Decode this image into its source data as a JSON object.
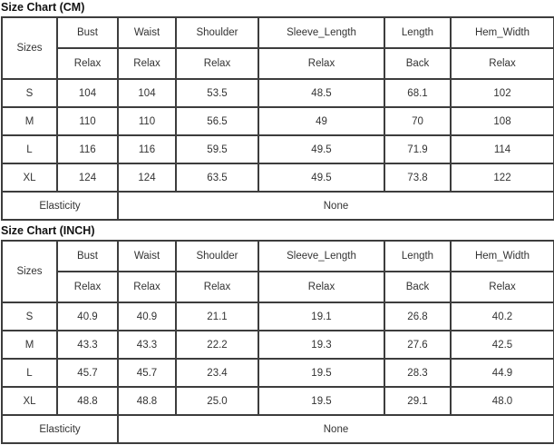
{
  "colors": {
    "border": "#3d3d3d",
    "text": "#333333",
    "title_text": "#111111",
    "background": "#ffffff"
  },
  "tables": [
    {
      "title": "Size Chart (CM)",
      "corner_label": "Sizes",
      "columns": [
        {
          "label": "Bust",
          "sub": "Relax"
        },
        {
          "label": "Waist",
          "sub": "Relax"
        },
        {
          "label": "Shoulder",
          "sub": "Relax"
        },
        {
          "label": "Sleeve_Length",
          "sub": "Relax"
        },
        {
          "label": "Length",
          "sub": "Back"
        },
        {
          "label": "Hem_Width",
          "sub": "Relax"
        }
      ],
      "rows": [
        {
          "size": "S",
          "values": [
            "104",
            "104",
            "53.5",
            "48.5",
            "68.1",
            "102"
          ]
        },
        {
          "size": "M",
          "values": [
            "110",
            "110",
            "56.5",
            "49",
            "70",
            "108"
          ]
        },
        {
          "size": "L",
          "values": [
            "116",
            "116",
            "59.5",
            "49.5",
            "71.9",
            "114"
          ]
        },
        {
          "size": "XL",
          "values": [
            "124",
            "124",
            "63.5",
            "49.5",
            "73.8",
            "122"
          ]
        }
      ],
      "footer": {
        "label": "Elasticity",
        "value": "None"
      }
    },
    {
      "title": "Size Chart (INCH)",
      "corner_label": "Sizes",
      "columns": [
        {
          "label": "Bust",
          "sub": "Relax"
        },
        {
          "label": "Waist",
          "sub": "Relax"
        },
        {
          "label": "Shoulder",
          "sub": "Relax"
        },
        {
          "label": "Sleeve_Length",
          "sub": "Relax"
        },
        {
          "label": "Length",
          "sub": "Back"
        },
        {
          "label": "Hem_Width",
          "sub": "Relax"
        }
      ],
      "rows": [
        {
          "size": "S",
          "values": [
            "40.9",
            "40.9",
            "21.1",
            "19.1",
            "26.8",
            "40.2"
          ]
        },
        {
          "size": "M",
          "values": [
            "43.3",
            "43.3",
            "22.2",
            "19.3",
            "27.6",
            "42.5"
          ]
        },
        {
          "size": "L",
          "values": [
            "45.7",
            "45.7",
            "23.4",
            "19.5",
            "28.3",
            "44.9"
          ]
        },
        {
          "size": "XL",
          "values": [
            "48.8",
            "48.8",
            "25.0",
            "19.5",
            "29.1",
            "48.0"
          ]
        }
      ],
      "footer": {
        "label": "Elasticity",
        "value": "None"
      }
    }
  ]
}
